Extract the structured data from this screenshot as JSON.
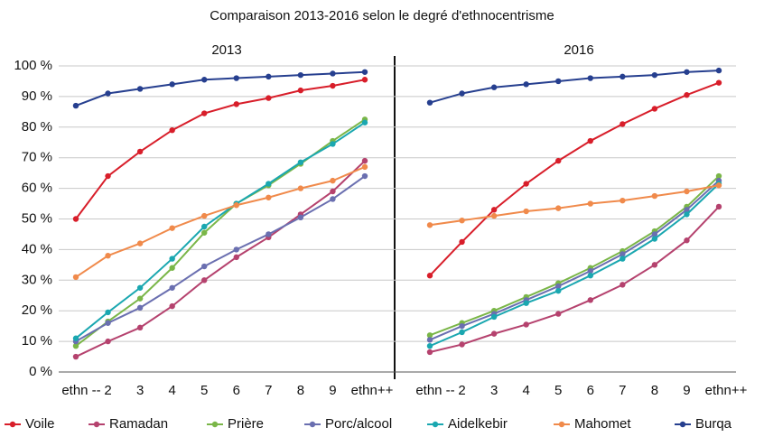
{
  "title": "Comparaison 2013-2016 selon le degré d'ethnocentrisme",
  "chart_data": [
    {
      "type": "line",
      "title": "2013",
      "categories": [
        "ethn --",
        "2",
        "3",
        "4",
        "5",
        "6",
        "7",
        "8",
        "9",
        "ethn++"
      ],
      "ylim": [
        0,
        100
      ],
      "yticks": [
        {
          "value": 0,
          "label": "0 %"
        },
        {
          "value": 10,
          "label": "10 %"
        },
        {
          "value": 20,
          "label": "20 %"
        },
        {
          "value": 30,
          "label": "30 %"
        },
        {
          "value": 40,
          "label": "40 %"
        },
        {
          "value": 50,
          "label": "50 %"
        },
        {
          "value": 60,
          "label": "60 %"
        },
        {
          "value": 70,
          "label": "70 %"
        },
        {
          "value": 80,
          "label": "80 %"
        },
        {
          "value": 90,
          "label": "90 %"
        },
        {
          "value": 100,
          "label": "100 %"
        }
      ],
      "grid": true,
      "series": [
        {
          "name": "Voile",
          "color": "#d81e2a",
          "values": [
            50,
            64,
            72,
            79,
            84.5,
            87.5,
            89.5,
            92,
            93.5,
            95.5
          ]
        },
        {
          "name": "Ramadan",
          "color": "#b5426e",
          "values": [
            5,
            10,
            14.5,
            21.5,
            30,
            37.5,
            44,
            51.5,
            59,
            69
          ]
        },
        {
          "name": "Prière",
          "color": "#7ab648",
          "values": [
            8.5,
            16.5,
            24,
            34,
            45.5,
            55,
            61,
            68,
            75.5,
            82.5
          ]
        },
        {
          "name": "Porc/alcool",
          "color": "#6a6fb0",
          "values": [
            10,
            16,
            21,
            27.5,
            34.5,
            40,
            45,
            50.5,
            56.5,
            64
          ]
        },
        {
          "name": "Aidelkebir",
          "color": "#1aa7b0",
          "values": [
            11,
            19.5,
            27.5,
            37,
            47.5,
            55,
            61.5,
            68.5,
            74.5,
            81.5
          ]
        },
        {
          "name": "Mahomet",
          "color": "#f08a4b",
          "values": [
            31,
            38,
            42,
            47,
            51,
            54.5,
            57,
            60,
            62.5,
            67
          ]
        },
        {
          "name": "Burqa",
          "color": "#263f8f",
          "values": [
            87,
            91,
            92.5,
            94,
            95.5,
            96,
            96.5,
            97,
            97.5,
            98
          ]
        }
      ]
    },
    {
      "type": "line",
      "title": "2016",
      "categories": [
        "ethn --",
        "2",
        "3",
        "4",
        "5",
        "6",
        "7",
        "8",
        "9",
        "ethn++"
      ],
      "ylim": [
        0,
        100
      ],
      "series": [
        {
          "name": "Voile",
          "color": "#d81e2a",
          "values": [
            31.5,
            42.5,
            53,
            61.5,
            69,
            75.5,
            81,
            86,
            90.5,
            94.5
          ]
        },
        {
          "name": "Ramadan",
          "color": "#b5426e",
          "values": [
            6.5,
            9,
            12.5,
            15.5,
            19,
            23.5,
            28.5,
            35,
            43,
            54
          ]
        },
        {
          "name": "Prière",
          "color": "#7ab648",
          "values": [
            12,
            16,
            20,
            24.5,
            29,
            34,
            39.5,
            46,
            54,
            64
          ]
        },
        {
          "name": "Porc/alcool",
          "color": "#6a6fb0",
          "values": [
            10.5,
            15,
            19,
            23.5,
            28,
            33,
            38.5,
            45,
            53,
            62.5
          ]
        },
        {
          "name": "Aidelkebir",
          "color": "#1aa7b0",
          "values": [
            8.5,
            13,
            18,
            22.5,
            26.5,
            31.5,
            37,
            43.5,
            51.5,
            61.5
          ]
        },
        {
          "name": "Mahomet",
          "color": "#f08a4b",
          "values": [
            48,
            49.5,
            51,
            52.5,
            53.5,
            55,
            56,
            57.5,
            59,
            61
          ]
        },
        {
          "name": "Burqa",
          "color": "#263f8f",
          "values": [
            88,
            91,
            93,
            94,
            95,
            96,
            96.5,
            97,
            98,
            98.5
          ]
        }
      ]
    }
  ]
}
